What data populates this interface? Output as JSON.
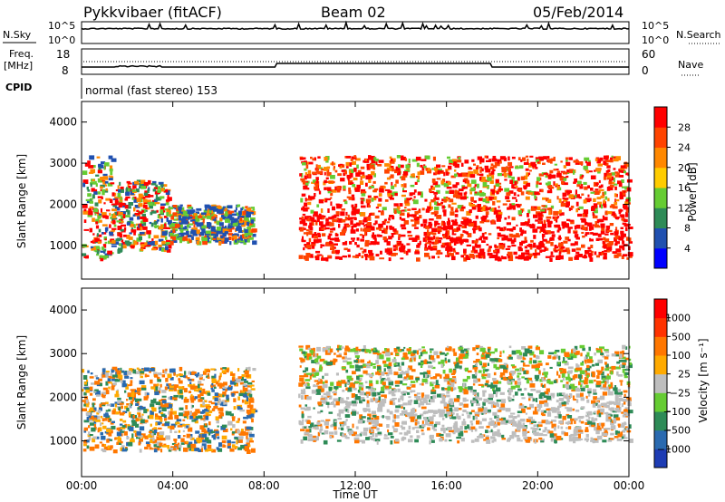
{
  "header": {
    "station": "Pykkvibaer (fitACF)",
    "beam": "Beam 02",
    "date": "05/Feb/2014"
  },
  "top_panel": {
    "left_label": "N.Sky",
    "left_ticks": [
      "10^5",
      "10^0"
    ],
    "right_ticks": [
      "10^5",
      "10^0"
    ],
    "right_label": "N.Search"
  },
  "freq_panel": {
    "left_label_line1": "Freq.",
    "left_label_line2": "[MHz]",
    "left_ticks": [
      "18",
      "8"
    ],
    "right_ticks": [
      "60",
      "0"
    ],
    "right_label": "Nave"
  },
  "cpid_panel": {
    "label": "CPID",
    "text": "normal (fast stereo) 153"
  },
  "power_panel": {
    "ylabel": "Slant Range [km]",
    "yticks": [
      "4000",
      "3000",
      "2000",
      "1000"
    ],
    "colorbar_label": "Power [dB]",
    "colorbar_ticks": [
      "28",
      "24",
      "20",
      "16",
      "12",
      "8",
      "4"
    ],
    "colors": [
      "#0000ff",
      "#2050b0",
      "#2e8b57",
      "#66cc33",
      "#ffcc00",
      "#ff8800",
      "#ff4400",
      "#ff0000"
    ]
  },
  "velocity_panel": {
    "ylabel": "Slant Range [km]",
    "yticks": [
      "4000",
      "3000",
      "2000",
      "1000"
    ],
    "colorbar_label": "Velocity  [m s⁻¹]",
    "colorbar_ticks": [
      "1000",
      "500",
      "100",
      "25",
      "−25",
      "−100",
      "−500",
      "−1000"
    ],
    "colors": [
      "#1e3cb4",
      "#2a6ab0",
      "#2e8b57",
      "#66cc33",
      "#bebebe",
      "#ffaa00",
      "#ff7700",
      "#ff3300",
      "#ff0000"
    ]
  },
  "time_axis": {
    "label": "Time UT",
    "ticks": [
      "00:00",
      "04:00",
      "08:00",
      "12:00",
      "16:00",
      "20:00",
      "00:00"
    ]
  },
  "chart_data": {
    "type": "heatmap",
    "x": [
      "00:00",
      "04:00",
      "08:00",
      "12:00",
      "16:00",
      "20:00",
      "00:00"
    ],
    "xlabel": "Time UT",
    "ylabel": "Slant Range [km]",
    "ylim": [
      180,
      4500
    ],
    "panels": [
      {
        "name": "Power [dB]",
        "colorbar_range": [
          0,
          30
        ],
        "scatter_regions": [
          {
            "start_hour": 0.0,
            "end_hour": 1.3,
            "range_km": [
              700,
              3200
            ],
            "dominant": "mixed"
          },
          {
            "start_hour": 1.3,
            "end_hour": 3.8,
            "range_km": [
              900,
              2600
            ],
            "dominant": "mixed"
          },
          {
            "start_hour": 3.8,
            "end_hour": 7.5,
            "range_km": [
              1100,
              2000
            ],
            "dominant": "green-blue"
          },
          {
            "start_hour": 9.5,
            "end_hour": 24.0,
            "range_km": [
              700,
              3200
            ],
            "dominant": "red"
          }
        ]
      },
      {
        "name": "Velocity [m s-1]",
        "colorbar_range": [
          -1000,
          1000
        ],
        "scatter_regions": [
          {
            "start_hour": 0.0,
            "end_hour": 7.5,
            "range_km": [
              800,
              2700
            ],
            "dominant": "orange-blue"
          },
          {
            "start_hour": 9.5,
            "end_hour": 24.0,
            "range_km": [
              1000,
              3200
            ],
            "dominant": "grey-green"
          }
        ]
      }
    ]
  }
}
